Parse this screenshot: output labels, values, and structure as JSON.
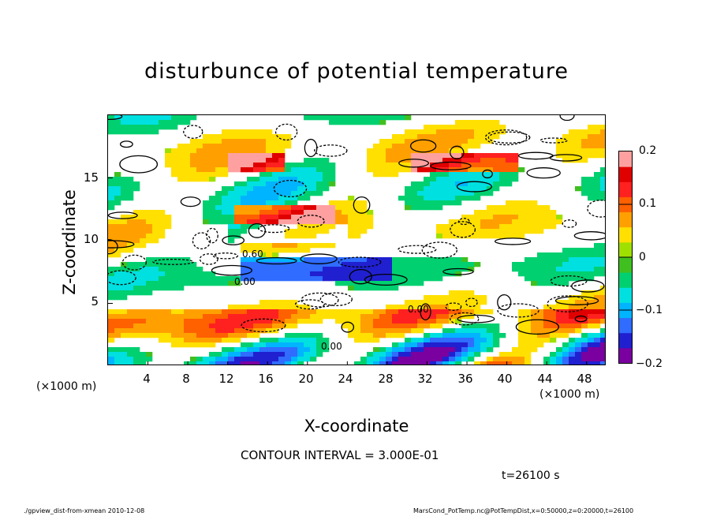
{
  "chart_data": {
    "type": "heatmap",
    "title": "disturbunce of potential temperature",
    "xlabel": "X-coordinate",
    "ylabel": "Z-coordinate",
    "x_unit": "(×1000 m)",
    "y_unit": "(×1000 m)",
    "x_ticks": [
      4,
      8,
      12,
      16,
      20,
      24,
      28,
      32,
      36,
      40,
      44,
      48
    ],
    "y_ticks": [
      5,
      10,
      15
    ],
    "xlim": [
      0,
      50
    ],
    "ylim": [
      0,
      20
    ],
    "colorbar_ticks": [
      0.2,
      0.1,
      0,
      -0.1,
      -0.2
    ],
    "colorbar_labels": [
      "0.2",
      "0.1",
      "0",
      "−0.1",
      "−0.2"
    ],
    "colorbar_range": [
      -0.2,
      0.2
    ],
    "colorbar_colors": [
      "#7a00a0",
      "#2020d0",
      "#2f6cff",
      "#00b4ff",
      "#00e0e0",
      "#00d070",
      "#40c020",
      "#a0e000",
      "#ffe000",
      "#ffa000",
      "#ff6000",
      "#ff2020",
      "#e00000",
      "#ffa0a0"
    ],
    "contour_interval_text": "CONTOUR INTERVAL = 3.000E-01",
    "time_text": "t=26100 s",
    "contour_labels": [
      "0.00",
      "0.00",
      "0.00",
      "0.60"
    ]
  },
  "footer": {
    "left": "./gpview_dist-from-xmean   2010-12-08",
    "right": "MarsCond_PotTemp.nc@PotTempDist,x=0:50000,z=0:20000,t=26100"
  }
}
